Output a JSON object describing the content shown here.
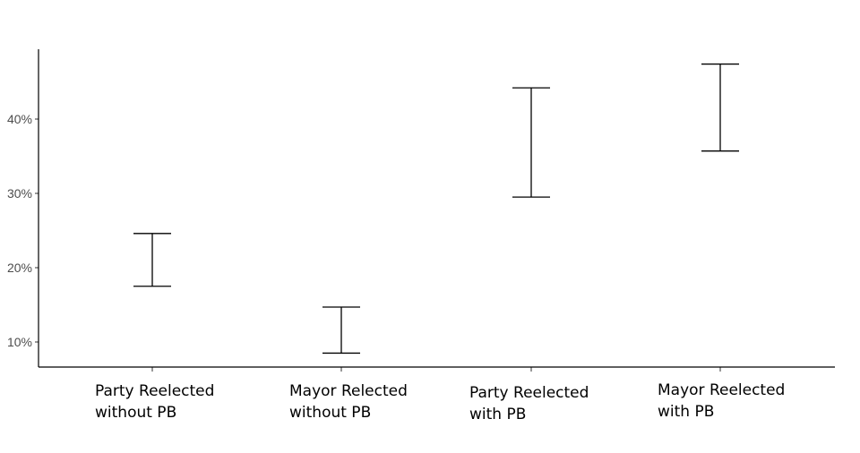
{
  "chart_data": {
    "type": "errorbar",
    "title": "",
    "xlabel": "",
    "ylabel": "",
    "ylim": [
      6.5,
      49.5
    ],
    "y_ticks": [
      10,
      20,
      30,
      40
    ],
    "y_tick_labels": [
      "10%",
      "20%",
      "30%",
      "40%"
    ],
    "grid": false,
    "categories": [
      [
        "Party Reelected",
        "without PB"
      ],
      [
        "Mayor Relected",
        "without PB"
      ],
      [
        "Party Reelected",
        "with PB"
      ],
      [
        "Mayor Reelected",
        "with PB"
      ]
    ],
    "intervals": [
      {
        "low": 17.5,
        "high": 24.6
      },
      {
        "low": 8.5,
        "high": 14.7
      },
      {
        "low": 29.5,
        "high": 44.2
      },
      {
        "low": 35.7,
        "high": 47.4
      }
    ]
  }
}
